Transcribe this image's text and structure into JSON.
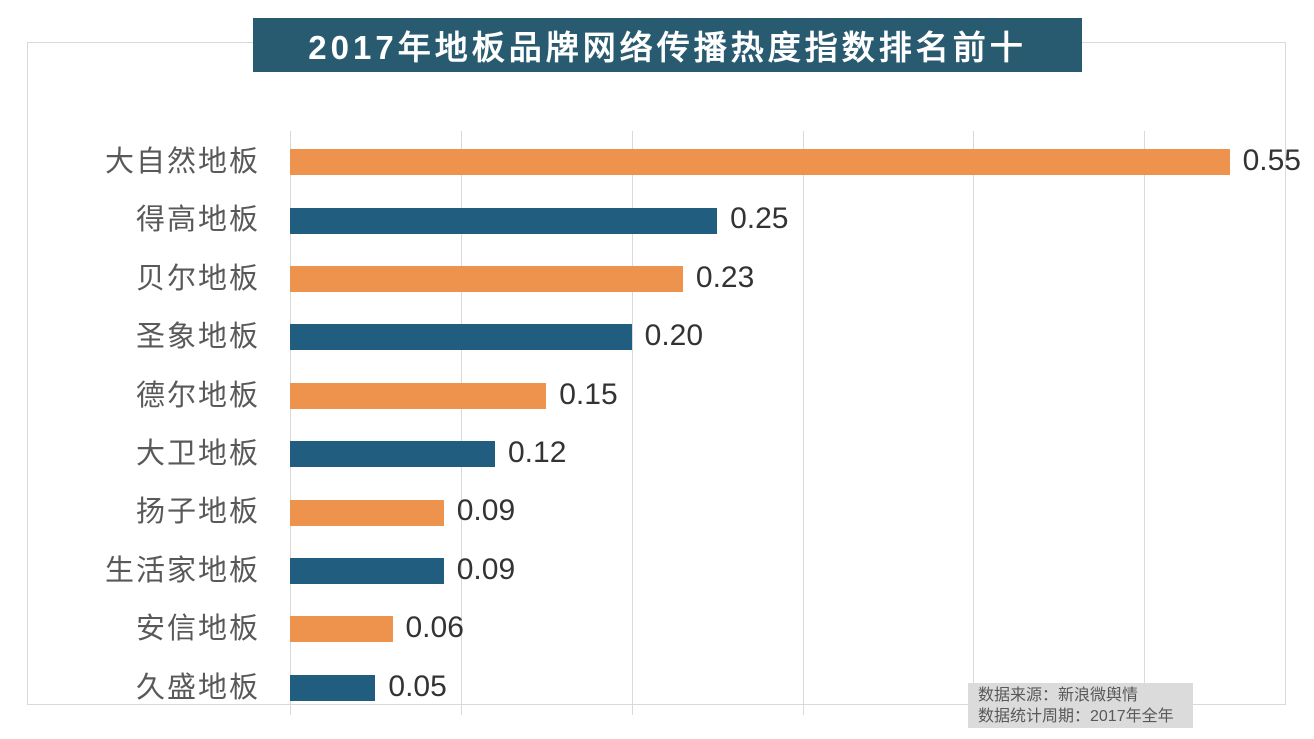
{
  "title": "2017年地板品牌网络传播热度指数排名前十",
  "source_note": {
    "line1": "数据来源：新浪微舆情",
    "line2": "数据统计周期：2017年全年"
  },
  "colors": {
    "banner_bg": "#285a70",
    "bar_orange": "#ed934e",
    "bar_blue": "#205d7e",
    "gridline": "#d9d9d9",
    "border": "#d9d9d9",
    "category_text": "#595959",
    "value_text": "#333333",
    "note_bg": "#dbdbdb",
    "note_text": "#595959"
  },
  "chart_data": {
    "type": "bar",
    "orientation": "horizontal",
    "title": "2017年地板品牌网络传播热度指数排名前十",
    "categories": [
      "大自然地板",
      "得高地板",
      "贝尔地板",
      "圣象地板",
      "德尔地板",
      "大卫地板",
      "扬子地板",
      "生活家地板",
      "安信地板",
      "久盛地板"
    ],
    "values": [
      0.55,
      0.25,
      0.23,
      0.2,
      0.15,
      0.12,
      0.09,
      0.09,
      0.06,
      0.05
    ],
    "value_labels": [
      "0.55",
      "0.25",
      "0.23",
      "0.20",
      "0.15",
      "0.12",
      "0.09",
      "0.09",
      "0.06",
      "0.05"
    ],
    "bar_color_pattern": [
      "#ed934e",
      "#205d7e"
    ],
    "xlabel": "",
    "ylabel": "",
    "xlim": [
      0,
      0.6
    ],
    "gridlines_x": [
      0,
      0.1,
      0.2,
      0.3,
      0.4,
      0.5,
      0.6
    ],
    "grid": true,
    "legend_position": "none",
    "annotations": [
      "数据来源：新浪微舆情",
      "数据统计周期：2017年全年"
    ]
  }
}
